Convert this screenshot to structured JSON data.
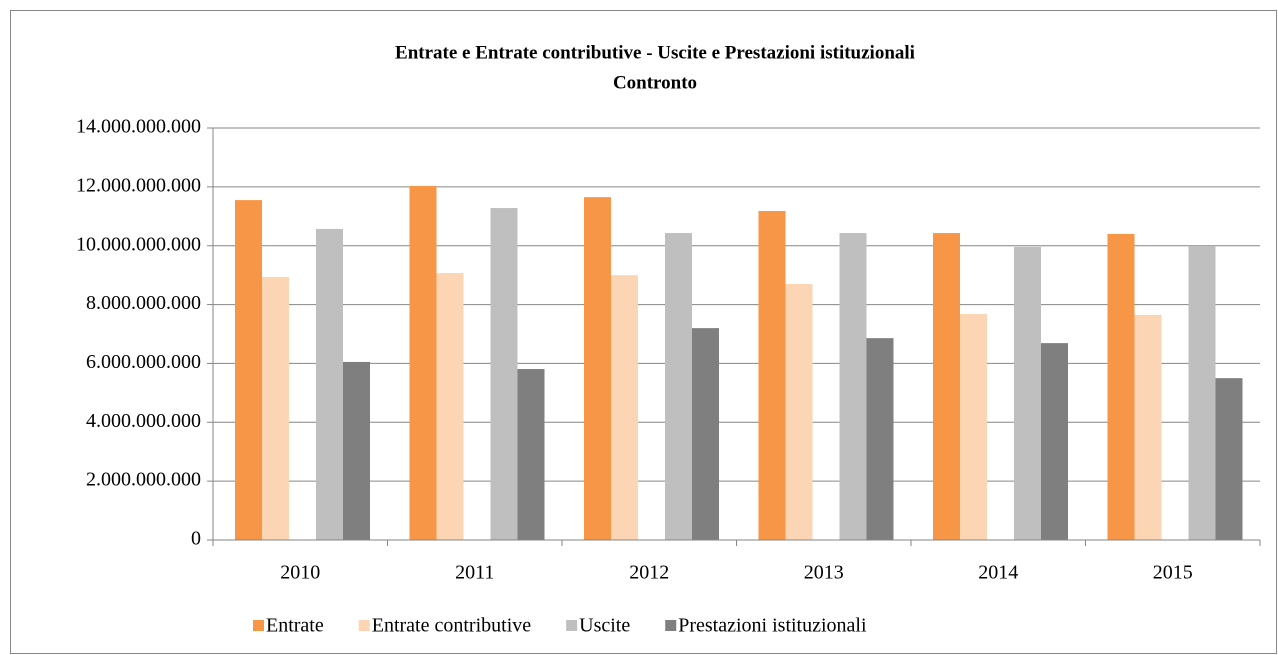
{
  "chart_data": {
    "type": "bar",
    "title": "Entrate e Entrate contributive - Uscite e Prestazioni istituzionali",
    "subtitle": "Contronto",
    "categories": [
      "2010",
      "2011",
      "2012",
      "2013",
      "2014",
      "2015"
    ],
    "series": [
      {
        "name": "Entrate",
        "color": "#f79646",
        "values": [
          11550000000,
          12030000000,
          11650000000,
          11180000000,
          10430000000,
          10400000000
        ]
      },
      {
        "name": "Entrate contributive",
        "color": "#fcd5b5",
        "values": [
          8940000000,
          9070000000,
          9000000000,
          8700000000,
          7680000000,
          7650000000
        ]
      },
      {
        "name": "Uscite",
        "color": "#bfbfbf",
        "values": [
          10570000000,
          11280000000,
          10430000000,
          10430000000,
          9960000000,
          9990000000
        ]
      },
      {
        "name": "Prestazioni istituzionali",
        "color": "#7f7f7f",
        "values": [
          6050000000,
          5810000000,
          7200000000,
          6860000000,
          6690000000,
          5500000000
        ]
      }
    ],
    "ylim": [
      0,
      14000000000
    ],
    "yticks": [
      0,
      {
        "value": 2000000000,
        "label": "2.000.000.000"
      },
      {
        "value": 4000000000,
        "label": "4.000.000.000"
      },
      {
        "value": 6000000000,
        "label": "6.000.000.000"
      },
      {
        "value": 8000000000,
        "label": "8.000.000.000"
      },
      {
        "value": 10000000000,
        "label": "10.000.000.000"
      },
      {
        "value": 12000000000,
        "label": "12.000.000.000"
      },
      {
        "value": 14000000000,
        "label": "14.000.000.000"
      }
    ],
    "grid": true,
    "legend": "bottom"
  }
}
